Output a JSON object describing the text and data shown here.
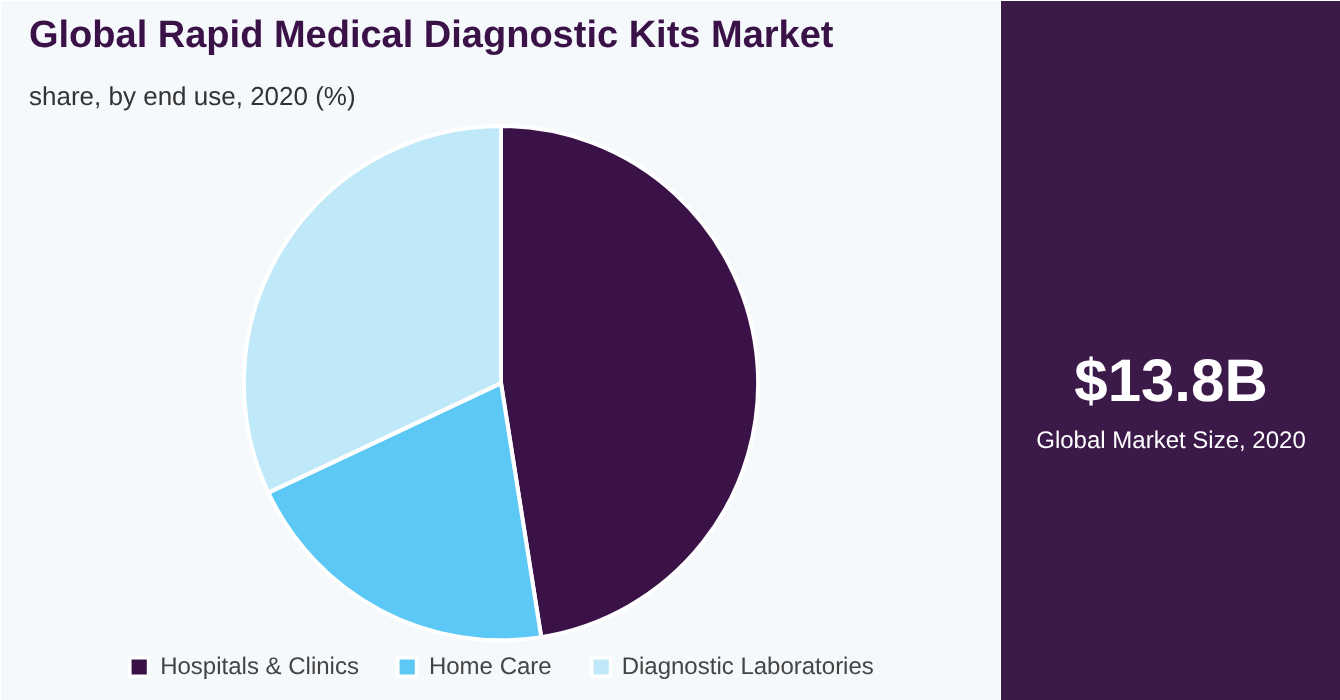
{
  "chart_data": [
    {
      "type": "pie",
      "title": "Global Rapid Medical Diagnostic Kits Market",
      "subtitle": "share, by end use, 2020 (%)",
      "categories": [
        "Hospitals & Clinics",
        "Home Care",
        "Diagnostic Laboratories"
      ],
      "values": [
        47.5,
        20.5,
        32
      ],
      "colors": [
        "#3a1248",
        "#5bc8f5",
        "#bfe8f9"
      ],
      "legend": "bottom"
    },
    {
      "type": "other",
      "title": "$13.8B",
      "subtitle": "Global Market Size, 2020"
    }
  ]
}
